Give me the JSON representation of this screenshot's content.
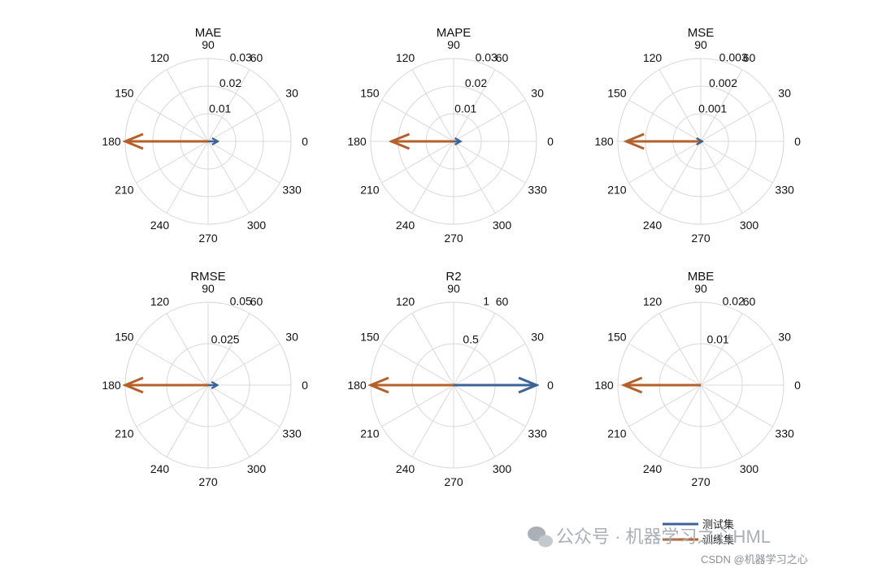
{
  "chart_data": [
    {
      "type": "polar-arrow",
      "title": "MAE",
      "angle_ticks": [
        "0",
        "30",
        "60",
        "90",
        "120",
        "150",
        "180",
        "210",
        "240",
        "270",
        "300",
        "330"
      ],
      "r_ticks": [
        "0.01",
        "0.02",
        "0.03"
      ],
      "rmax": 0.03,
      "series": [
        {
          "name": "测试集",
          "angle": 0,
          "r": 0.0035
        },
        {
          "name": "训练集",
          "angle": 180,
          "r": 0.03
        }
      ]
    },
    {
      "type": "polar-arrow",
      "title": "MAPE",
      "angle_ticks": [
        "0",
        "30",
        "60",
        "90",
        "120",
        "150",
        "180",
        "210",
        "240",
        "270",
        "300",
        "330"
      ],
      "r_ticks": [
        "0.01",
        "0.02",
        "0.03"
      ],
      "rmax": 0.03,
      "series": [
        {
          "name": "测试集",
          "angle": 0,
          "r": 0.0025
        },
        {
          "name": "训练集",
          "angle": 180,
          "r": 0.0225
        }
      ]
    },
    {
      "type": "polar-arrow",
      "title": "MSE",
      "angle_ticks": [
        "0",
        "30",
        "60",
        "90",
        "120",
        "150",
        "180",
        "210",
        "240",
        "270",
        "300",
        "330"
      ],
      "r_ticks": [
        "0.001",
        "0.002",
        "0.003"
      ],
      "rmax": 0.003,
      "series": [
        {
          "name": "测试集",
          "angle": 0,
          "r": 5e-05
        },
        {
          "name": "训练集",
          "angle": 180,
          "r": 0.0027
        }
      ]
    },
    {
      "type": "polar-arrow",
      "title": "RMSE",
      "angle_ticks": [
        "0",
        "30",
        "60",
        "90",
        "120",
        "150",
        "180",
        "210",
        "240",
        "270",
        "300",
        "330"
      ],
      "r_ticks": [
        "0.025",
        "0.05"
      ],
      "rmax": 0.05,
      "series": [
        {
          "name": "测试集",
          "angle": 0,
          "r": 0.0055
        },
        {
          "name": "训练集",
          "angle": 180,
          "r": 0.05
        }
      ]
    },
    {
      "type": "polar-arrow",
      "title": "R2",
      "angle_ticks": [
        "0",
        "30",
        "60",
        "90",
        "120",
        "150",
        "180",
        "210",
        "240",
        "270",
        "300",
        "330"
      ],
      "r_ticks": [
        "0.5",
        "1"
      ],
      "rmax": 1,
      "series": [
        {
          "name": "测试集",
          "angle": 0,
          "r": 1.0
        },
        {
          "name": "训练集",
          "angle": 180,
          "r": 1.0
        }
      ]
    },
    {
      "type": "polar-arrow",
      "title": "MBE",
      "angle_ticks": [
        "0",
        "30",
        "60",
        "90",
        "120",
        "150",
        "180",
        "210",
        "240",
        "270",
        "300",
        "330"
      ],
      "r_ticks": [
        "0.01",
        "0.02"
      ],
      "rmax": 0.02,
      "series": [
        {
          "name": "测试集",
          "angle": 0,
          "r": 0.0
        },
        {
          "name": "训练集",
          "angle": 180,
          "r": 0.0185
        }
      ]
    }
  ],
  "legend": [
    {
      "label": "测试集",
      "color": "#3b6396"
    },
    {
      "label": "训练集",
      "color": "#b5602b"
    }
  ],
  "colors": {
    "test": "#3b6396",
    "train": "#b5602b",
    "grid": "#d8d8d8"
  },
  "watermark": {
    "main": "公众号 · 机器学习之心HML",
    "credit": "CSDN @机器学习之心"
  }
}
